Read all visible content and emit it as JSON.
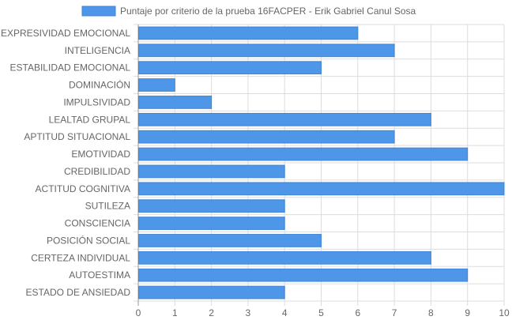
{
  "chart_data": {
    "type": "bar",
    "orientation": "horizontal",
    "categories": [
      "EXPRESIVIDAD EMOCIONAL",
      "INTELIGENCIA",
      "ESTABILIDAD EMOCIONAL",
      "DOMINACIÓN",
      "IMPULSIVIDAD",
      "LEALTAD GRUPAL",
      "APTITUD SITUACIONAL",
      "EMOTIVIDAD",
      "CREDIBILIDAD",
      "ACTITUD COGNITIVA",
      "SUTILEZA",
      "CONSCIENCIA",
      "POSICIÓN SOCIAL",
      "CERTEZA INDIVIDUAL",
      "AUTOESTIMA",
      "ESTADO DE ANSIEDAD"
    ],
    "series": [
      {
        "name": "Puntaje por criterio de la prueba 16FACPER - Erik Gabriel Canul Sosa",
        "values": [
          6,
          7,
          5,
          1,
          2,
          8,
          7,
          9,
          4,
          10,
          4,
          4,
          5,
          8,
          9,
          4
        ],
        "color": "#4e96e8"
      }
    ],
    "xlim": [
      0,
      10
    ],
    "x_ticks": [
      "0",
      "1",
      "2",
      "3",
      "4",
      "5",
      "6",
      "7",
      "8",
      "9",
      "10"
    ],
    "grid": true,
    "legend_position": "top"
  },
  "colors": {
    "bar_fill": "#4e96e8",
    "bar_stroke": "#3f84d6",
    "grid": "#dddddd",
    "axis": "#999999",
    "text": "#666666"
  }
}
